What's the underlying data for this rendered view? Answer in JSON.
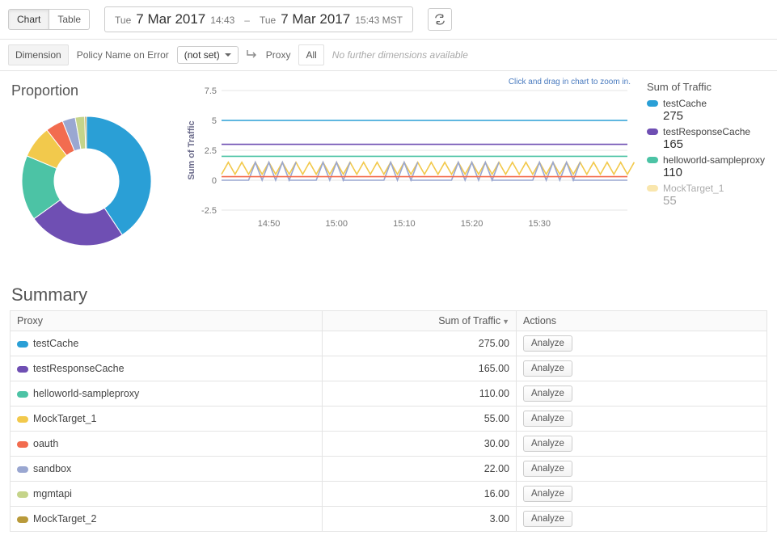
{
  "toolbar": {
    "chart_tab": "Chart",
    "table_tab": "Table",
    "date_from_day": "Tue",
    "date_from_main": "7 Mar 2017",
    "date_from_time": "14:43",
    "date_sep": "–",
    "date_to_day": "Tue",
    "date_to_main": "7 Mar 2017",
    "date_to_time": "15:43 MST"
  },
  "dimension": {
    "label": "Dimension",
    "policy_label": "Policy Name on Error",
    "policy_value": "(not set)",
    "proxy_label": "Proxy",
    "all_label": "All",
    "hint": "No further dimensions available"
  },
  "proportion": {
    "title": "Proportion",
    "colors": {
      "testCache": "#2a9fd6",
      "testResponseCache": "#6f4fb3",
      "helloworld-sampleproxy": "#4cc3a5",
      "MockTarget_1": "#f2c94c",
      "oauth": "#f26c4f",
      "sandbox": "#9aa7d1",
      "mgmtapi": "#c5d48a",
      "MockTarget_2": "#b99a3a"
    },
    "values": [
      {
        "key": "testCache",
        "v": 275
      },
      {
        "key": "testResponseCache",
        "v": 165
      },
      {
        "key": "helloworld-sampleproxy",
        "v": 110
      },
      {
        "key": "MockTarget_1",
        "v": 55
      },
      {
        "key": "oauth",
        "v": 30
      },
      {
        "key": "sandbox",
        "v": 22
      },
      {
        "key": "mgmtapi",
        "v": 16
      },
      {
        "key": "MockTarget_2",
        "v": 3
      }
    ]
  },
  "line_chart": {
    "y_label": "Sum of Traffic",
    "zoom_hint": "Click and drag in chart to zoom in.",
    "y_ticks": [
      -2.5,
      0,
      2.5,
      5,
      7.5
    ],
    "ylim": [
      -2.5,
      7.5
    ],
    "x_ticks": [
      "14:50",
      "15:00",
      "15:10",
      "15:20",
      "15:30"
    ],
    "grid_color": "#e4e4e4",
    "x_domain_min": 0,
    "x_domain_max": 60,
    "series": [
      {
        "key": "testCache",
        "color": "#2a9fd6",
        "flat": 5.0
      },
      {
        "key": "testResponseCache",
        "color": "#6f4fb3",
        "flat": 3.0
      },
      {
        "key": "helloworld-sampleproxy",
        "color": "#4cc3a5",
        "flat": 2.0
      },
      {
        "key": "MockTarget_1",
        "color": "#f2c94c",
        "zig": {
          "low": 0.5,
          "high": 1.5,
          "period": 2,
          "start": 0
        }
      },
      {
        "key": "sandbox",
        "color": "#9aa7d1",
        "zig": {
          "low": 0.0,
          "high": 1.5,
          "period": 2,
          "start": 0,
          "sparse_runs": [
            [
              4,
              10
            ],
            [
              14,
              18
            ],
            [
              24,
              28
            ],
            [
              34,
              40
            ],
            [
              46,
              52
            ]
          ]
        }
      },
      {
        "key": "oauth",
        "color": "#f26c4f",
        "flat": 0.3
      }
    ]
  },
  "legend": {
    "title": "Sum of Traffic",
    "items": [
      {
        "key": "testCache",
        "label": "testCache",
        "value": "275",
        "color": "#2a9fd6"
      },
      {
        "key": "testResponseCache",
        "label": "testResponseCache",
        "value": "165",
        "color": "#6f4fb3"
      },
      {
        "key": "helloworld-sampleproxy",
        "label": "helloworld-sampleproxy",
        "value": "110",
        "color": "#4cc3a5"
      },
      {
        "key": "MockTarget_1",
        "label": "MockTarget_1",
        "value": "55",
        "color": "#f2c94c",
        "faded": true
      }
    ]
  },
  "summary": {
    "title": "Summary",
    "col_proxy": "Proxy",
    "col_traffic": "Sum of Traffic",
    "col_actions": "Actions",
    "analyze_label": "Analyze",
    "rows": [
      {
        "color": "#2a9fd6",
        "proxy": "testCache",
        "traffic": "275.00"
      },
      {
        "color": "#6f4fb3",
        "proxy": "testResponseCache",
        "traffic": "165.00"
      },
      {
        "color": "#4cc3a5",
        "proxy": "helloworld-sampleproxy",
        "traffic": "110.00"
      },
      {
        "color": "#f2c94c",
        "proxy": "MockTarget_1",
        "traffic": "55.00"
      },
      {
        "color": "#f26c4f",
        "proxy": "oauth",
        "traffic": "30.00"
      },
      {
        "color": "#9aa7d1",
        "proxy": "sandbox",
        "traffic": "22.00"
      },
      {
        "color": "#c5d48a",
        "proxy": "mgmtapi",
        "traffic": "16.00"
      },
      {
        "color": "#b99a3a",
        "proxy": "MockTarget_2",
        "traffic": "3.00"
      }
    ]
  }
}
